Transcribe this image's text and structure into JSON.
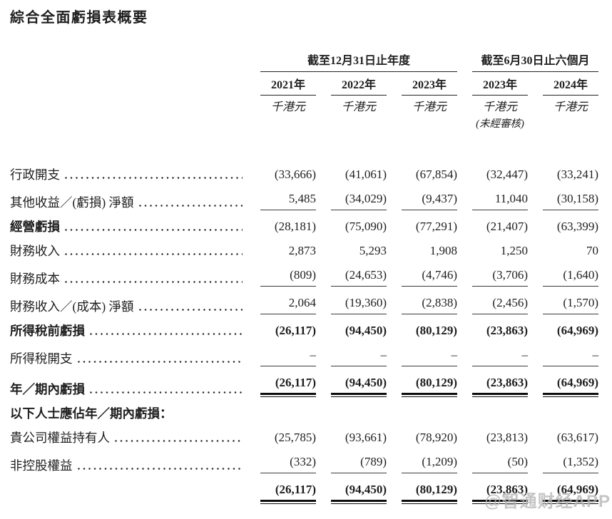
{
  "page": {
    "title": "綜合全面虧損表概要",
    "watermark": "@智通财经APP"
  },
  "table": {
    "groups": [
      {
        "title": "截至12月31日止年度"
      },
      {
        "title": "截至6月30日止六個月"
      }
    ],
    "columns": [
      {
        "year": "2021年",
        "unit": "千港元",
        "note": ""
      },
      {
        "year": "2022年",
        "unit": "千港元",
        "note": ""
      },
      {
        "year": "2023年",
        "unit": "千港元",
        "note": ""
      },
      {
        "year": "2023年",
        "unit": "千港元",
        "note": "(未經審核)"
      },
      {
        "year": "2024年",
        "unit": "千港元",
        "note": ""
      }
    ],
    "rows": [
      {
        "label": "行政開支",
        "values": [
          "(33,666)",
          "(41,061)",
          "(67,854)",
          "(32,447)",
          "(33,241)"
        ]
      },
      {
        "label": "其他收益／(虧損) 淨額",
        "values": [
          "5,485",
          "(34,029)",
          "(9,437)",
          "11,040",
          "(30,158)"
        ]
      },
      {
        "label": "經營虧損",
        "values": [
          "(28,181)",
          "(75,090)",
          "(77,291)",
          "(21,407)",
          "(63,399)"
        ]
      },
      {
        "label": "財務收入",
        "values": [
          "2,873",
          "5,293",
          "1,908",
          "1,250",
          "70"
        ]
      },
      {
        "label": "財務成本",
        "values": [
          "(809)",
          "(24,653)",
          "(4,746)",
          "(3,706)",
          "(1,640)"
        ]
      },
      {
        "label": "財務收入／(成本) 淨額",
        "values": [
          "2,064",
          "(19,360)",
          "(2,838)",
          "(2,456)",
          "(1,570)"
        ]
      },
      {
        "label": "所得稅前虧損",
        "values": [
          "(26,117)",
          "(94,450)",
          "(80,129)",
          "(23,863)",
          "(64,969)"
        ]
      },
      {
        "label": "所得稅開支",
        "values": [
          "–",
          "–",
          "–",
          "–",
          "–"
        ]
      },
      {
        "label": "年／期內虧損",
        "values": [
          "(26,117)",
          "(94,450)",
          "(80,129)",
          "(23,863)",
          "(64,969)"
        ]
      },
      {
        "label": "以下人士應佔年／期內虧損：",
        "values": [
          "",
          "",
          "",
          "",
          ""
        ]
      },
      {
        "label": "貴公司權益持有人",
        "values": [
          "(25,785)",
          "(93,661)",
          "(78,920)",
          "(23,813)",
          "(63,617)"
        ]
      },
      {
        "label": "非控股權益",
        "values": [
          "(332)",
          "(789)",
          "(1,209)",
          "(50)",
          "(1,352)"
        ]
      },
      {
        "label": "",
        "values": [
          "(26,117)",
          "(94,450)",
          "(80,129)",
          "(23,863)",
          "(64,969)"
        ]
      }
    ]
  }
}
